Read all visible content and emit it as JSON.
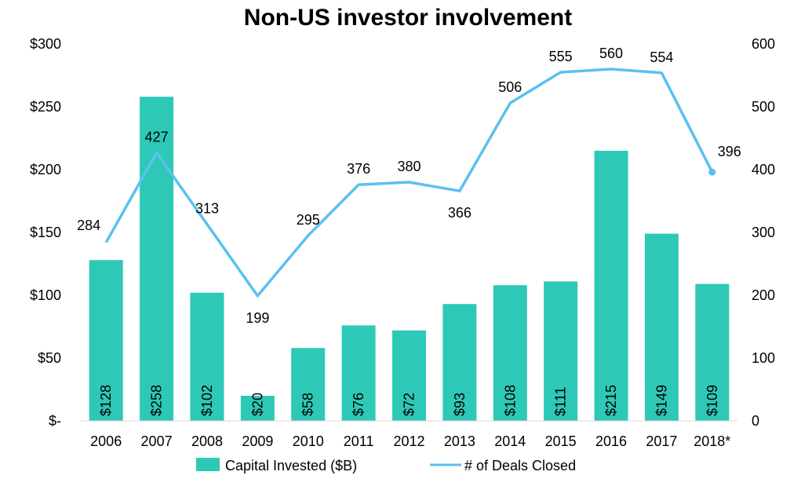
{
  "chart_data": {
    "type": "bar",
    "title": "Non-US investor involvement",
    "categories": [
      "2006",
      "2007",
      "2008",
      "2009",
      "2010",
      "2011",
      "2012",
      "2013",
      "2014",
      "2015",
      "2016",
      "2017",
      "2018*"
    ],
    "series": [
      {
        "name": "Capital Invested ($B)",
        "type": "bar",
        "axis": "left",
        "color": "#2ec8b7",
        "values": [
          128,
          258,
          102,
          20,
          58,
          76,
          72,
          93,
          108,
          111,
          215,
          149,
          109
        ],
        "labels": [
          "$128",
          "$258",
          "$102",
          "$20",
          "$58",
          "$76",
          "$72",
          "$93",
          "$108",
          "$111",
          "$215",
          "$149",
          "$109"
        ]
      },
      {
        "name": "# of Deals Closed",
        "type": "line",
        "axis": "right",
        "color": "#5bc0f0",
        "values": [
          284,
          427,
          313,
          199,
          295,
          376,
          380,
          366,
          506,
          555,
          560,
          554,
          396
        ],
        "labels": [
          "284",
          "427",
          "313",
          "199",
          "295",
          "376",
          "380",
          "366",
          "506",
          "555",
          "560",
          "554",
          "396"
        ]
      }
    ],
    "y_left": {
      "min": 0,
      "max": 300,
      "ticks": [
        0,
        50,
        100,
        150,
        200,
        250,
        300
      ],
      "tick_labels": [
        "$-",
        "$50",
        "$100",
        "$150",
        "$200",
        "$250",
        "$300"
      ]
    },
    "y_right": {
      "min": 0,
      "max": 600,
      "ticks": [
        0,
        100,
        200,
        300,
        400,
        500,
        600
      ],
      "tick_labels": [
        "0",
        "100",
        "200",
        "300",
        "400",
        "500",
        "600"
      ]
    },
    "grid": false,
    "legend_position": "bottom"
  }
}
